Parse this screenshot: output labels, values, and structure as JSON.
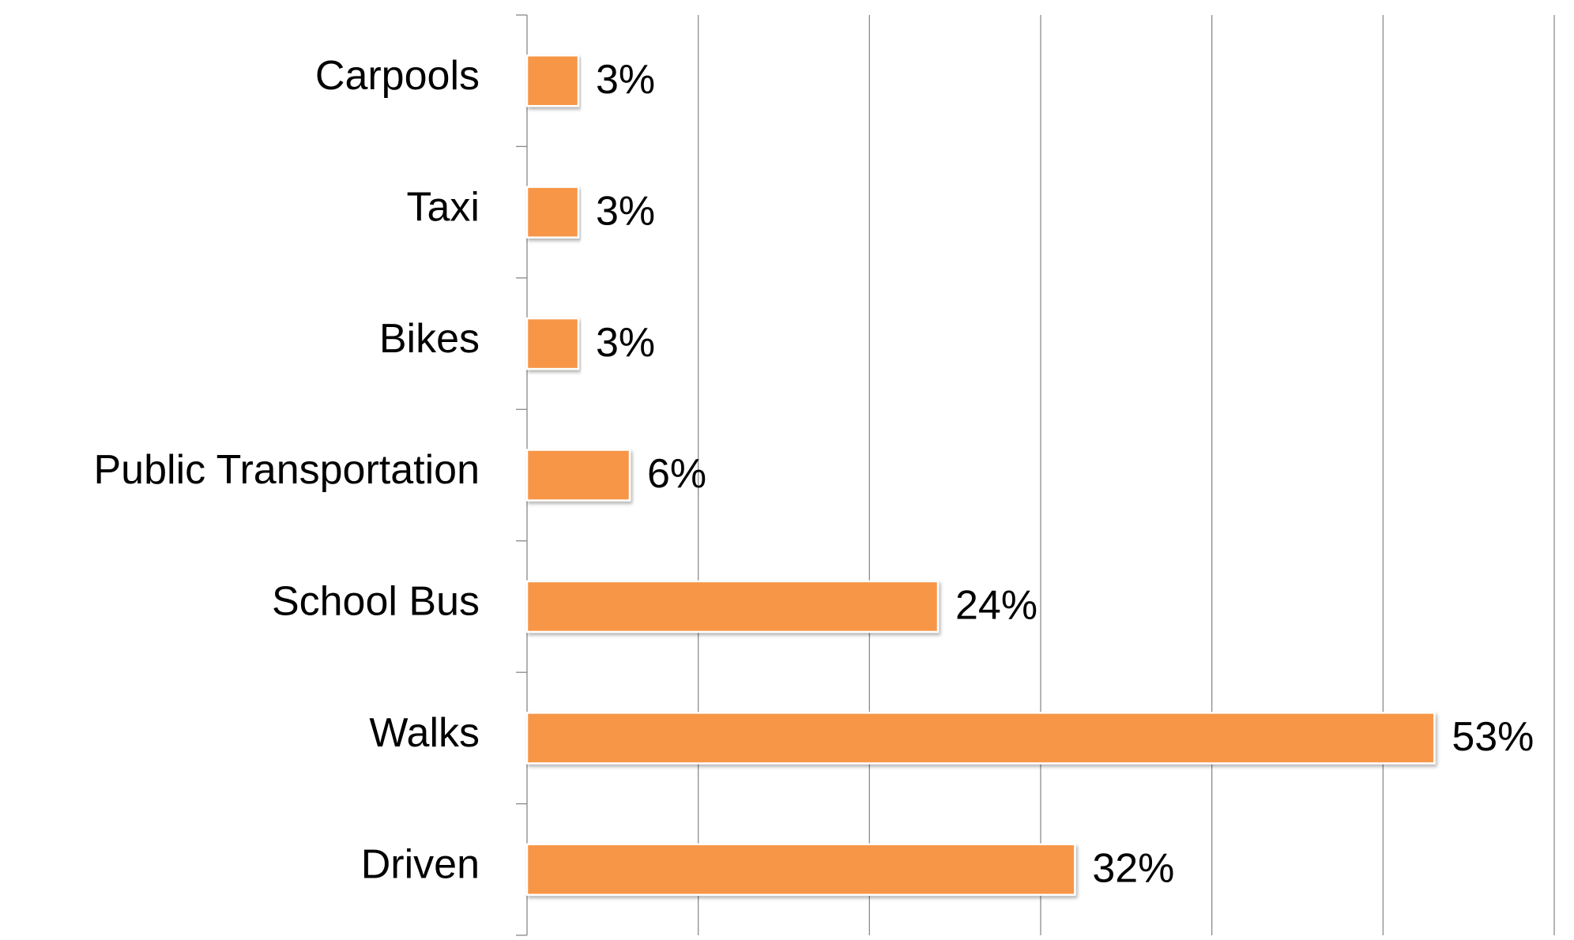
{
  "chart_data": {
    "type": "bar",
    "orientation": "horizontal",
    "categories": [
      "Carpools",
      "Taxi",
      "Bikes",
      "Public Transportation",
      "School Bus",
      "Walks",
      "Driven"
    ],
    "values": [
      3,
      3,
      3,
      6,
      24,
      53,
      32
    ],
    "value_labels": [
      "3%",
      "3%",
      "3%",
      "6%",
      "24%",
      "53%",
      "32%"
    ],
    "color": "#f79646",
    "xlim": [
      0,
      60
    ],
    "xticks": [
      0,
      10,
      20,
      30,
      40,
      50,
      60
    ],
    "grid": true
  }
}
